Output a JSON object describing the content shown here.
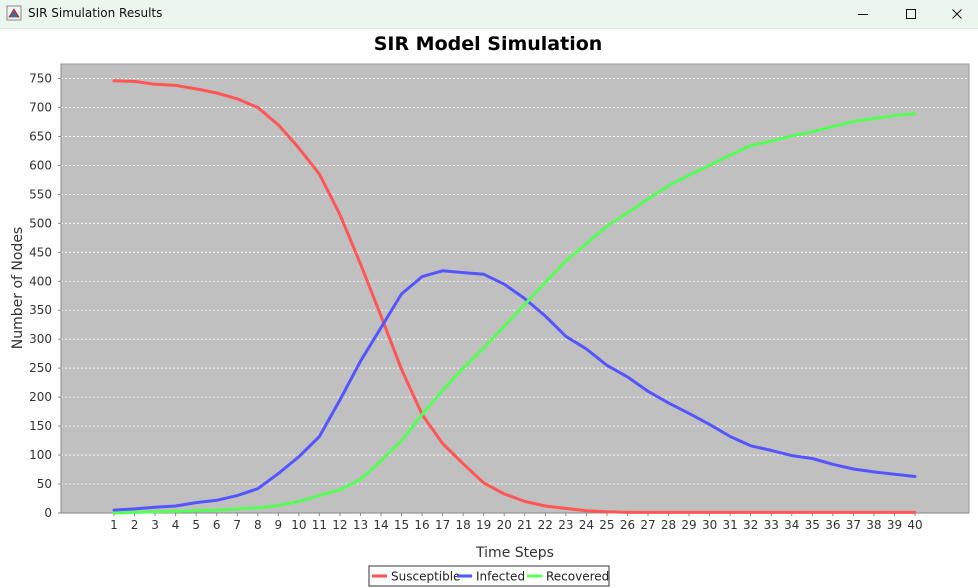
{
  "window": {
    "title": "SIR Simulation Results"
  },
  "chart_data": {
    "type": "line",
    "title": "SIR Model Simulation",
    "xlabel": "Time Steps",
    "ylabel": "Number of Nodes",
    "x": [
      1,
      2,
      3,
      4,
      5,
      6,
      7,
      8,
      9,
      10,
      11,
      12,
      13,
      14,
      15,
      16,
      17,
      18,
      19,
      20,
      21,
      22,
      23,
      24,
      25,
      26,
      27,
      28,
      29,
      30,
      31,
      32,
      33,
      34,
      35,
      36,
      37,
      38,
      39,
      40
    ],
    "ylim": [
      0,
      775
    ],
    "yticks": [
      0,
      50,
      100,
      150,
      200,
      250,
      300,
      350,
      400,
      450,
      500,
      550,
      600,
      650,
      700,
      750
    ],
    "grid": true,
    "background": "#c0c0c0",
    "legend_position": "bottom",
    "series": [
      {
        "name": "Susceptible",
        "color": "#ff5555",
        "values": [
          746,
          745,
          740,
          738,
          732,
          725,
          715,
          700,
          670,
          630,
          585,
          515,
          430,
          340,
          248,
          170,
          120,
          85,
          52,
          33,
          20,
          12,
          8,
          4,
          2,
          1,
          1,
          1,
          1,
          1,
          1,
          1,
          1,
          1,
          1,
          1,
          1,
          1,
          1,
          1
        ]
      },
      {
        "name": "Infected",
        "color": "#5555ff",
        "values": [
          5,
          7,
          10,
          12,
          18,
          22,
          30,
          42,
          68,
          97,
          132,
          195,
          262,
          320,
          378,
          408,
          418,
          415,
          412,
          395,
          370,
          340,
          305,
          283,
          255,
          235,
          210,
          190,
          172,
          153,
          132,
          116,
          108,
          99,
          94,
          84,
          76,
          71,
          67,
          63
        ]
      },
      {
        "name": "Recovered",
        "color": "#55ff55",
        "values": [
          0,
          1,
          2,
          3,
          4,
          5,
          7,
          9,
          13,
          20,
          30,
          40,
          58,
          90,
          125,
          170,
          212,
          250,
          285,
          322,
          360,
          398,
          435,
          465,
          495,
          518,
          542,
          565,
          583,
          600,
          618,
          634,
          642,
          651,
          658,
          667,
          676,
          681,
          686,
          689
        ]
      }
    ]
  }
}
